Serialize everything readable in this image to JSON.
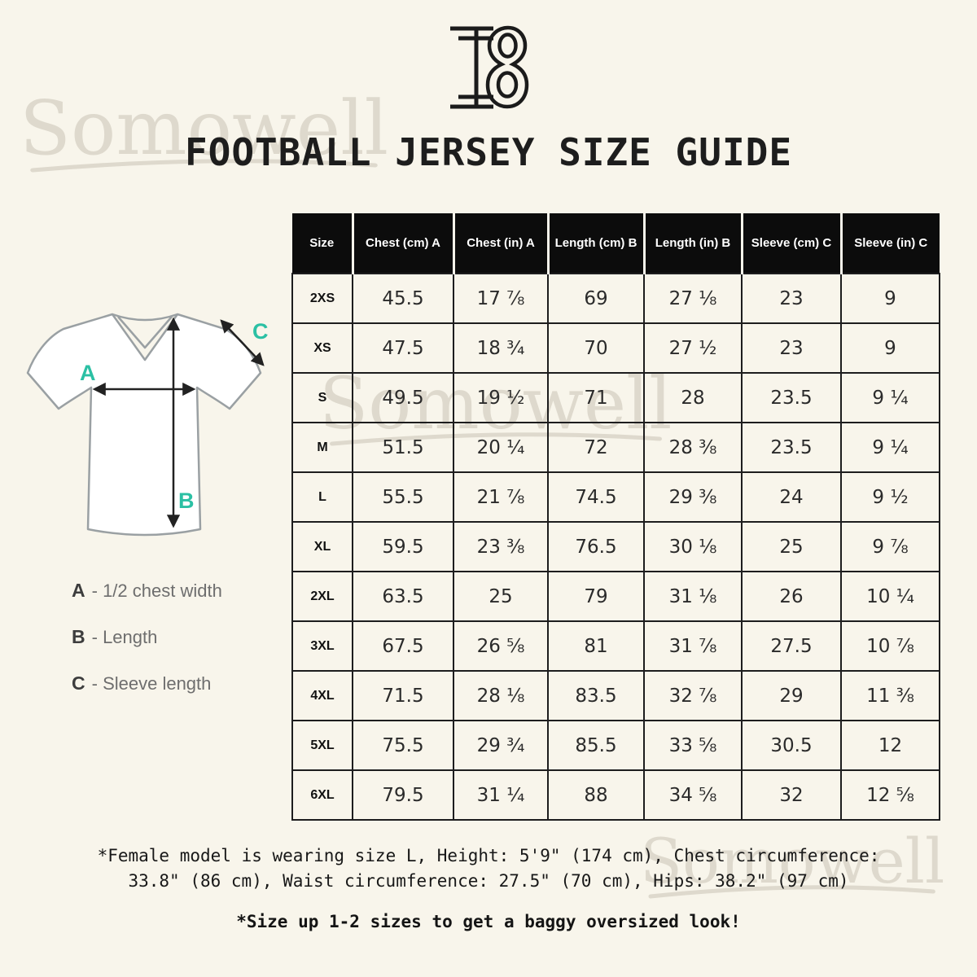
{
  "page": {
    "title": "FOOTBALL JERSEY SIZE GUIDE",
    "background_color": "#f8f5eb"
  },
  "logo": {
    "monogram": "I8"
  },
  "watermark": {
    "text": "Somowell",
    "color": "#ddd9cc"
  },
  "diagram": {
    "accent_color": "#2bc0a4",
    "labels": {
      "a": "A",
      "b": "B",
      "c": "C"
    },
    "legend": [
      {
        "letter": "A",
        "rest": "- 1/2 chest width"
      },
      {
        "letter": "B",
        "rest": "- Length"
      },
      {
        "letter": "C",
        "rest": "- Sleeve length"
      }
    ]
  },
  "size_table": {
    "headers": [
      "Size",
      "Chest (cm) A",
      "Chest (in) A",
      "Length (cm) B",
      "Length (in) B",
      "Sleeve (cm) C",
      "Sleeve (in) C"
    ],
    "rows": [
      [
        "2XS",
        "45.5",
        "17 ⅞",
        "69",
        "27 ⅛",
        "23",
        "9"
      ],
      [
        "XS",
        "47.5",
        "18 ¾",
        "70",
        "27 ½",
        "23",
        "9"
      ],
      [
        "S",
        "49.5",
        "19 ½",
        "71",
        "28",
        "23.5",
        "9 ¼"
      ],
      [
        "M",
        "51.5",
        "20 ¼",
        "72",
        "28 ⅜",
        "23.5",
        "9 ¼"
      ],
      [
        "L",
        "55.5",
        "21 ⅞",
        "74.5",
        "29 ⅜",
        "24",
        "9 ½"
      ],
      [
        "XL",
        "59.5",
        "23 ⅜",
        "76.5",
        "30 ⅛",
        "25",
        "9 ⅞"
      ],
      [
        "2XL",
        "63.5",
        "25",
        "79",
        "31 ⅛",
        "26",
        "10 ¼"
      ],
      [
        "3XL",
        "67.5",
        "26 ⅝",
        "81",
        "31 ⅞",
        "27.5",
        "10 ⅞"
      ],
      [
        "4XL",
        "71.5",
        "28 ⅛",
        "83.5",
        "32 ⅞",
        "29",
        "11 ⅜"
      ],
      [
        "5XL",
        "75.5",
        "29 ¾",
        "85.5",
        "33 ⅝",
        "30.5",
        "12"
      ],
      [
        "6XL",
        "79.5",
        "31 ¼",
        "88",
        "34 ⅝",
        "32",
        "12 ⅝"
      ]
    ]
  },
  "notes": {
    "model_note_line1": "*Female model is wearing size L, Height: 5'9\" (174 cm), Chest circumference:",
    "model_note_line2": "33.8\" (86 cm), Waist circumference: 27.5\" (70 cm), Hips: 38.2\" (97 cm)",
    "size_up_note": "*Size up 1-2 sizes to get a baggy oversized look!"
  },
  "colors": {
    "accent_teal": "#2bc0a4",
    "table_header_bg": "#0c0c0c",
    "table_border": "#1d1d1e",
    "shirt_outline": "#9aa0a3"
  }
}
